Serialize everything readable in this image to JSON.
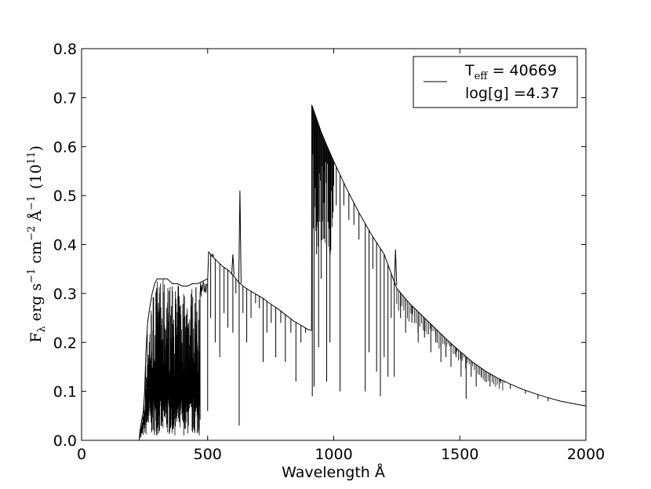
{
  "chart_data": {
    "type": "line",
    "xlabel": "Wavelength Å",
    "ylabel": {
      "f": "F",
      "f_sub": "λ",
      "erg": "erg s",
      "exp1": "−1",
      "cm": " cm",
      "exp2": "−2",
      "ang": " Å",
      "exp3": "−1",
      "scale_open": "(10",
      "scale_exp": "11",
      "scale_close": ")"
    },
    "xlim": [
      0,
      2000
    ],
    "ylim": [
      0,
      0.8
    ],
    "x_ticks": [
      "0",
      "500",
      "1000",
      "1500",
      "2000"
    ],
    "y_ticks": [
      "0.0",
      "0.1",
      "0.2",
      "0.3",
      "0.4",
      "0.5",
      "0.6",
      "0.7",
      "0.8"
    ],
    "grid": false,
    "legend_position": "top-right",
    "legend": {
      "line1_prefix": "T",
      "line1_sub": "eff",
      "line1_suffix": " = 40669",
      "line2": "log[g] =4.37"
    },
    "line_color": "#000000",
    "series": [
      {
        "envelope": [
          [
            228,
            0.0
          ],
          [
            232,
            0.02
          ],
          [
            238,
            0.04
          ],
          [
            245,
            0.06
          ],
          [
            250,
            0.1
          ],
          [
            255,
            0.18
          ],
          [
            262,
            0.24
          ],
          [
            270,
            0.27
          ],
          [
            280,
            0.3
          ],
          [
            290,
            0.32
          ],
          [
            300,
            0.33
          ],
          [
            320,
            0.33
          ],
          [
            340,
            0.33
          ],
          [
            360,
            0.32
          ],
          [
            380,
            0.32
          ],
          [
            400,
            0.315
          ],
          [
            420,
            0.315
          ],
          [
            440,
            0.32
          ],
          [
            460,
            0.32
          ],
          [
            480,
            0.325
          ],
          [
            500,
            0.33
          ],
          [
            504,
            0.385
          ],
          [
            520,
            0.375
          ],
          [
            540,
            0.365
          ],
          [
            560,
            0.355
          ],
          [
            580,
            0.348
          ],
          [
            600,
            0.338
          ],
          [
            620,
            0.325
          ],
          [
            640,
            0.315
          ],
          [
            660,
            0.308
          ],
          [
            680,
            0.302
          ],
          [
            700,
            0.296
          ],
          [
            720,
            0.29
          ],
          [
            740,
            0.282
          ],
          [
            760,
            0.275
          ],
          [
            780,
            0.268
          ],
          [
            800,
            0.26
          ],
          [
            820,
            0.252
          ],
          [
            840,
            0.244
          ],
          [
            860,
            0.238
          ],
          [
            880,
            0.232
          ],
          [
            900,
            0.226
          ],
          [
            912,
            0.225
          ],
          [
            913,
            0.685
          ],
          [
            930,
            0.66
          ],
          [
            950,
            0.63
          ],
          [
            970,
            0.605
          ],
          [
            1000,
            0.57
          ],
          [
            1050,
            0.515
          ],
          [
            1100,
            0.465
          ],
          [
            1150,
            0.42
          ],
          [
            1200,
            0.38
          ],
          [
            1250,
            0.31
          ],
          [
            1300,
            0.28
          ],
          [
            1350,
            0.255
          ],
          [
            1400,
            0.23
          ],
          [
            1450,
            0.205
          ],
          [
            1500,
            0.182
          ],
          [
            1550,
            0.16
          ],
          [
            1600,
            0.142
          ],
          [
            1650,
            0.127
          ],
          [
            1700,
            0.115
          ],
          [
            1750,
            0.104
          ],
          [
            1800,
            0.095
          ],
          [
            1850,
            0.087
          ],
          [
            1900,
            0.08
          ],
          [
            1950,
            0.075
          ],
          [
            2000,
            0.07
          ]
        ],
        "lines": [
          [
            500,
            0.06
          ],
          [
            512,
            0.25
          ],
          [
            530,
            0.2
          ],
          [
            548,
            0.17
          ],
          [
            565,
            0.26
          ],
          [
            580,
            0.23
          ],
          [
            600,
            0.22
          ],
          [
            612,
            0.3
          ],
          [
            625,
            0.03
          ],
          [
            640,
            0.26
          ],
          [
            655,
            0.2
          ],
          [
            672,
            0.25
          ],
          [
            690,
            0.28
          ],
          [
            705,
            0.27
          ],
          [
            720,
            0.16
          ],
          [
            735,
            0.22
          ],
          [
            752,
            0.24
          ],
          [
            770,
            0.17
          ],
          [
            790,
            0.24
          ],
          [
            808,
            0.16
          ],
          [
            830,
            0.22
          ],
          [
            850,
            0.12
          ],
          [
            870,
            0.2
          ],
          [
            888,
            0.22
          ],
          [
            915,
            0.09
          ],
          [
            922,
            0.11
          ],
          [
            932,
            0.38
          ],
          [
            940,
            0.19
          ],
          [
            950,
            0.33
          ],
          [
            962,
            0.55
          ],
          [
            972,
            0.12
          ],
          [
            985,
            0.2
          ],
          [
            1000,
            0.52
          ],
          [
            1010,
            0.48
          ],
          [
            1025,
            0.1
          ],
          [
            1040,
            0.48
          ],
          [
            1060,
            0.45
          ],
          [
            1080,
            0.44
          ],
          [
            1100,
            0.41
          ],
          [
            1125,
            0.1
          ],
          [
            1140,
            0.18
          ],
          [
            1155,
            0.35
          ],
          [
            1170,
            0.14
          ],
          [
            1185,
            0.09
          ],
          [
            1200,
            0.17
          ],
          [
            1215,
            0.13
          ],
          [
            1228,
            0.25
          ],
          [
            1240,
            0.13
          ],
          [
            1265,
            0.25
          ],
          [
            1285,
            0.22
          ],
          [
            1310,
            0.24
          ],
          [
            1335,
            0.2
          ],
          [
            1360,
            0.21
          ],
          [
            1385,
            0.18
          ],
          [
            1405,
            0.2
          ],
          [
            1425,
            0.16
          ],
          [
            1445,
            0.17
          ],
          [
            1465,
            0.15
          ],
          [
            1485,
            0.17
          ],
          [
            1505,
            0.13
          ],
          [
            1525,
            0.085
          ],
          [
            1545,
            0.13
          ],
          [
            1565,
            0.11
          ],
          [
            1585,
            0.13
          ],
          [
            1600,
            0.12
          ],
          [
            1620,
            0.11
          ],
          [
            1660,
            0.12
          ],
          [
            1700,
            0.105
          ],
          [
            1760,
            0.095
          ],
          [
            1810,
            0.085
          ],
          [
            1850,
            0.08
          ]
        ],
        "spikes": [
          [
            628,
            0.51
          ],
          [
            600,
            0.38
          ],
          [
            1245,
            0.39
          ],
          [
            520,
            0.38
          ]
        ]
      }
    ]
  }
}
